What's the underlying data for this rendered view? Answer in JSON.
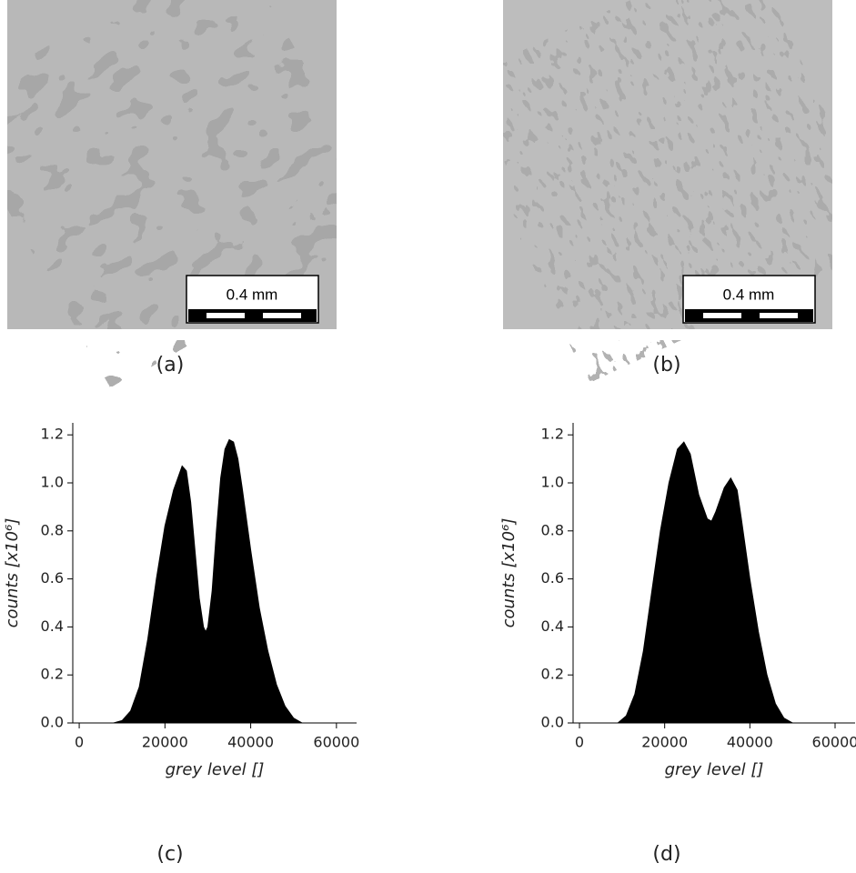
{
  "images": [
    {
      "caption": "(a)",
      "scale_bar": "0.4 mm"
    },
    {
      "caption": "(b)",
      "scale_bar": "0.4 mm"
    }
  ],
  "chart_data": [
    {
      "type": "area",
      "caption": "(c)",
      "xlabel": "grey level []",
      "ylabel": "counts [x10⁶]",
      "color": "#000000",
      "x": [
        8000,
        10000,
        12000,
        14000,
        16000,
        18000,
        20000,
        22000,
        24000,
        25000,
        26000,
        27000,
        28000,
        29000,
        29500,
        30000,
        31000,
        32000,
        33000,
        34000,
        35000,
        36000,
        37000,
        38000,
        40000,
        42000,
        44000,
        46000,
        48000,
        50000,
        52000
      ],
      "values": [
        0,
        0.01,
        0.05,
        0.15,
        0.35,
        0.6,
        0.82,
        0.97,
        1.07,
        1.05,
        0.92,
        0.72,
        0.52,
        0.4,
        0.38,
        0.4,
        0.55,
        0.8,
        1.02,
        1.14,
        1.18,
        1.17,
        1.1,
        0.98,
        0.72,
        0.48,
        0.3,
        0.16,
        0.07,
        0.02,
        0
      ],
      "xlim": [
        -1500,
        64700
      ],
      "xticks": [
        0,
        20000,
        40000,
        60000
      ],
      "ylim": [
        0,
        1.25
      ],
      "yticks": [
        {
          "value": 0,
          "label": "0.0"
        },
        0.2,
        0.4,
        0.6,
        0.8,
        {
          "value": 1,
          "label": "1.0"
        },
        1.2
      ]
    },
    {
      "type": "area",
      "caption": "(d)",
      "xlabel": "grey level []",
      "ylabel": "counts [x10⁶]",
      "color": "#000000",
      "x": [
        9000,
        11000,
        13000,
        15000,
        17000,
        19000,
        21000,
        23000,
        24500,
        26000,
        28000,
        30000,
        31000,
        32000,
        34000,
        35500,
        37000,
        38000,
        40000,
        42000,
        44000,
        46000,
        48000,
        50000
      ],
      "values": [
        0,
        0.03,
        0.12,
        0.3,
        0.55,
        0.8,
        1.0,
        1.14,
        1.17,
        1.12,
        0.95,
        0.85,
        0.84,
        0.88,
        0.98,
        1.02,
        0.97,
        0.85,
        0.6,
        0.38,
        0.2,
        0.08,
        0.02,
        0
      ],
      "xlim": [
        -1500,
        64700
      ],
      "xticks": [
        0,
        20000,
        40000,
        60000
      ],
      "ylim": [
        0,
        1.25
      ],
      "yticks": [
        {
          "value": 0,
          "label": "0.0"
        },
        0.2,
        0.4,
        0.6,
        0.8,
        {
          "value": 1,
          "label": "1.0"
        },
        1.2
      ]
    }
  ]
}
